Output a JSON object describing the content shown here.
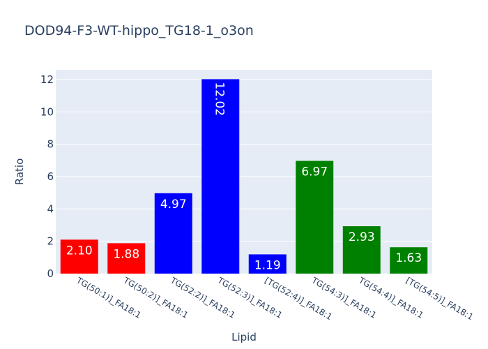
{
  "chart_data": {
    "type": "bar",
    "title": "DOD94-F3-WT-hippo_TG18-1_o3on",
    "xlabel": "Lipid",
    "ylabel": "Ratio",
    "ylim": [
      0,
      12.6
    ],
    "yticks": [
      0,
      2,
      4,
      6,
      8,
      10,
      12
    ],
    "grid": true,
    "categories": [
      "TG(50:1)]_FA18:1",
      "TG(50:2)]_FA18:1",
      "TG(52:2)]_FA18:1",
      "TG(52:3)]_FA18:1",
      "[TG(52:4)]_FA18:1",
      "TG(54:3)]_FA18:1",
      "TG(54:4)]_FA18:1",
      "[TG(54:5)]_FA18:1"
    ],
    "values": [
      2.1,
      1.88,
      4.97,
      12.02,
      1.19,
      6.97,
      2.93,
      1.63
    ],
    "data_labels": [
      "2.10",
      "1.88",
      "4.97",
      "12.02",
      "1.19",
      "6.97",
      "2.93",
      "1.63"
    ],
    "colors": [
      "#ff0000",
      "#ff0000",
      "#0000ff",
      "#0000ff",
      "#0000ff",
      "#008000",
      "#008000",
      "#008000"
    ],
    "plot_background": "#e5ecf6",
    "text_color": "#2a3f5f"
  }
}
